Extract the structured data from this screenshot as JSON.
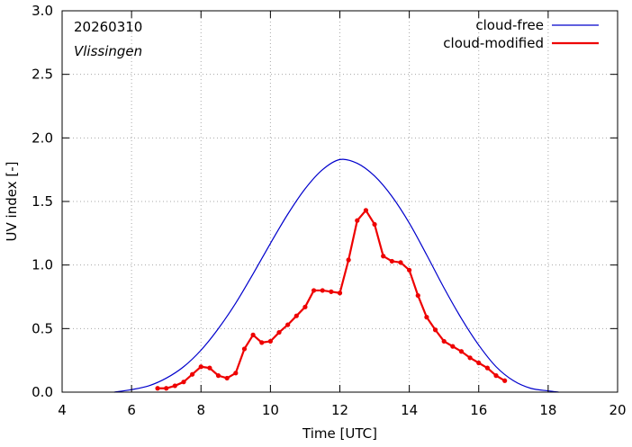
{
  "chart_data": {
    "type": "line",
    "date_label": "20260310",
    "location_label": "Vlissingen",
    "xlabel": "Time  [UTC]",
    "ylabel": "UV index  [-]",
    "xlim": [
      4,
      20
    ],
    "ylim": [
      0,
      3.0
    ],
    "x_ticks": [
      4,
      6,
      8,
      10,
      12,
      14,
      16,
      18,
      20
    ],
    "y_ticks": [
      0.0,
      0.5,
      1.0,
      1.5,
      2.0,
      2.5,
      3.0
    ],
    "x_tick_labels": [
      "4",
      "6",
      "8",
      "10",
      "12",
      "14",
      "16",
      "18",
      "20"
    ],
    "y_tick_labels": [
      "0.0",
      "0.5",
      "1.0",
      "1.5",
      "2.0",
      "2.5",
      "3.0"
    ],
    "legend_position": "top-right",
    "series": [
      {
        "name": "cloud-free",
        "color": "#0000cc",
        "style": "line",
        "x": [
          5.5,
          6.0,
          6.5,
          7.0,
          7.5,
          8.0,
          8.5,
          9.0,
          9.5,
          10.0,
          10.5,
          11.0,
          11.5,
          12.0,
          12.5,
          13.0,
          13.5,
          14.0,
          14.5,
          15.0,
          15.5,
          16.0,
          16.5,
          17.0,
          17.5,
          18.0,
          18.3
        ],
        "values": [
          0.0,
          0.02,
          0.05,
          0.11,
          0.2,
          0.33,
          0.5,
          0.7,
          0.93,
          1.17,
          1.4,
          1.6,
          1.75,
          1.83,
          1.8,
          1.7,
          1.54,
          1.33,
          1.08,
          0.82,
          0.58,
          0.37,
          0.2,
          0.09,
          0.03,
          0.01,
          0.0
        ]
      },
      {
        "name": "cloud-modified",
        "color": "#ee0000",
        "style": "line-points",
        "x": [
          6.75,
          7.0,
          7.25,
          7.5,
          7.75,
          8.0,
          8.25,
          8.5,
          8.75,
          9.0,
          9.25,
          9.5,
          9.75,
          10.0,
          10.25,
          10.5,
          10.75,
          11.0,
          11.25,
          11.5,
          11.75,
          12.0,
          12.25,
          12.5,
          12.75,
          13.0,
          13.25,
          13.5,
          13.75,
          14.0,
          14.25,
          14.5,
          14.75,
          15.0,
          15.25,
          15.5,
          15.75,
          16.0,
          16.25,
          16.5,
          16.75
        ],
        "values": [
          0.03,
          0.03,
          0.05,
          0.08,
          0.14,
          0.2,
          0.19,
          0.13,
          0.11,
          0.15,
          0.34,
          0.45,
          0.39,
          0.4,
          0.47,
          0.53,
          0.6,
          0.67,
          0.8,
          0.8,
          0.79,
          0.78,
          1.04,
          1.35,
          1.43,
          1.32,
          1.07,
          1.03,
          1.02,
          0.96,
          0.76,
          0.59,
          0.49,
          0.4,
          0.36,
          0.32,
          0.27,
          0.23,
          0.19,
          0.13,
          0.09
        ]
      }
    ]
  }
}
